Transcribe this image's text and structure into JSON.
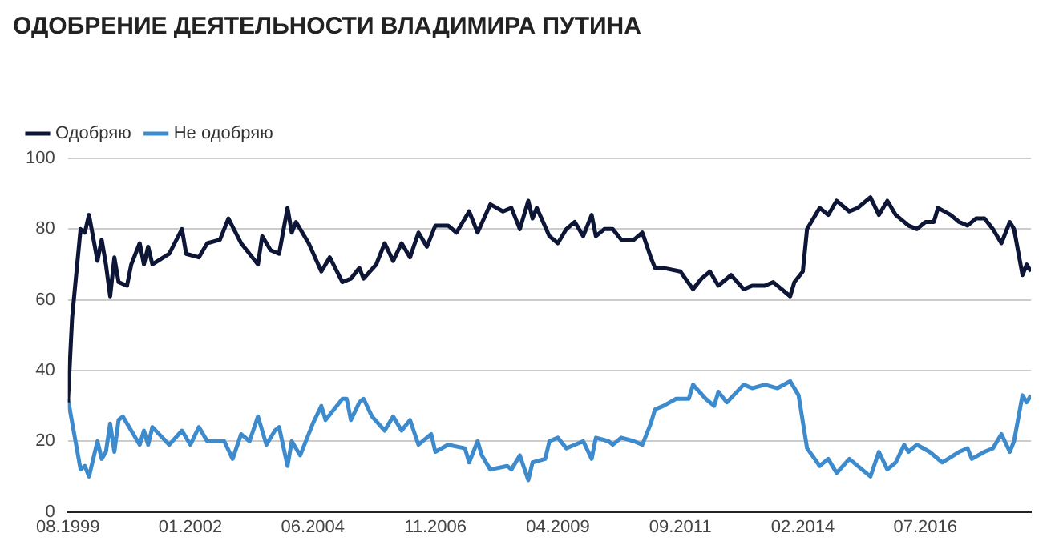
{
  "chart_data": {
    "type": "line",
    "title": "ОДОБРЕНИЕ ДЕЯТЕЛЬНОСТИ ВЛАДИМИРА ПУТИНА",
    "xlim": [
      "1999-08",
      "2018-08"
    ],
    "xticks": [
      {
        "value": "1999-08",
        "label": "08.1999"
      },
      {
        "value": "2002-01",
        "label": "01.2002"
      },
      {
        "value": "2004-06",
        "label": "06.2004"
      },
      {
        "value": "2006-11",
        "label": "11.2006"
      },
      {
        "value": "2009-04",
        "label": "04.2009"
      },
      {
        "value": "2011-09",
        "label": "09.2011"
      },
      {
        "value": "2014-02",
        "label": "02.2014"
      },
      {
        "value": "2016-07",
        "label": "07.2016"
      }
    ],
    "ylim": [
      0,
      100
    ],
    "yticks": [
      0,
      20,
      40,
      60,
      80,
      100
    ],
    "grid": "y",
    "legend": "top left",
    "marker": "none",
    "line_style": "solid",
    "series": [
      {
        "name": "Одобряю",
        "color": "#0d1637",
        "x": [
          "1999-08",
          "1999-09",
          "1999-11",
          "1999-12",
          "2000-01",
          "2000-03",
          "2000-04",
          "2000-05",
          "2000-06",
          "2000-07",
          "2000-08",
          "2000-10",
          "2000-11",
          "2001-01",
          "2001-02",
          "2001-03",
          "2001-04",
          "2001-08",
          "2001-11",
          "2001-12",
          "2002-03",
          "2002-05",
          "2002-08",
          "2002-10",
          "2003-01",
          "2003-05",
          "2003-06",
          "2003-08",
          "2003-10",
          "2003-12",
          "2004-01",
          "2004-02",
          "2004-05",
          "2004-08",
          "2004-10",
          "2005-01",
          "2005-03",
          "2005-05",
          "2005-06",
          "2005-09",
          "2005-11",
          "2006-01",
          "2006-03",
          "2006-05",
          "2006-07",
          "2006-09",
          "2006-11",
          "2007-02",
          "2007-04",
          "2007-07",
          "2007-09",
          "2007-12",
          "2008-03",
          "2008-05",
          "2008-07",
          "2008-09",
          "2008-10",
          "2008-11",
          "2009-02",
          "2009-04",
          "2009-06",
          "2009-08",
          "2009-10",
          "2009-12",
          "2010-01",
          "2010-03",
          "2010-05",
          "2010-07",
          "2010-10",
          "2010-12",
          "2011-02",
          "2011-03",
          "2011-05",
          "2011-09",
          "2011-12",
          "2012-02",
          "2012-04",
          "2012-06",
          "2012-09",
          "2012-12",
          "2013-02",
          "2013-05",
          "2013-07",
          "2013-09",
          "2013-11",
          "2013-12",
          "2014-02",
          "2014-03",
          "2014-06",
          "2014-08",
          "2014-10",
          "2015-01",
          "2015-03",
          "2015-06",
          "2015-08",
          "2015-10",
          "2015-12",
          "2016-03",
          "2016-05",
          "2016-07",
          "2016-09",
          "2016-10",
          "2017-01",
          "2017-03",
          "2017-05",
          "2017-07",
          "2017-09",
          "2017-11",
          "2018-01",
          "2018-03",
          "2018-04",
          "2018-06",
          "2018-07",
          "2018-08"
        ],
        "values": [
          31,
          55,
          80,
          79,
          84,
          71,
          77,
          70,
          61,
          72,
          65,
          64,
          70,
          76,
          70,
          75,
          70,
          73,
          80,
          73,
          72,
          76,
          77,
          83,
          76,
          70,
          78,
          74,
          73,
          86,
          79,
          82,
          76,
          68,
          72,
          65,
          66,
          69,
          66,
          70,
          76,
          71,
          76,
          72,
          79,
          75,
          81,
          81,
          79,
          85,
          79,
          87,
          85,
          86,
          80,
          88,
          83,
          86,
          78,
          76,
          80,
          82,
          78,
          84,
          78,
          80,
          80,
          77,
          77,
          79,
          72,
          69,
          69,
          68,
          63,
          66,
          68,
          64,
          67,
          63,
          64,
          64,
          65,
          63,
          61,
          65,
          68,
          80,
          86,
          84,
          88,
          85,
          86,
          89,
          84,
          88,
          84,
          81,
          80,
          82,
          82,
          86,
          84,
          82,
          81,
          83,
          83,
          80,
          76,
          82,
          80,
          67,
          70,
          68
        ]
      },
      {
        "name": "Не одобряю",
        "color": "#3d8bcd",
        "x": [
          "1999-08",
          "1999-11",
          "1999-12",
          "2000-01",
          "2000-03",
          "2000-04",
          "2000-05",
          "2000-06",
          "2000-07",
          "2000-08",
          "2000-09",
          "2000-11",
          "2001-01",
          "2001-02",
          "2001-03",
          "2001-04",
          "2001-08",
          "2001-11",
          "2002-01",
          "2002-03",
          "2002-05",
          "2002-09",
          "2002-11",
          "2003-01",
          "2003-03",
          "2003-05",
          "2003-07",
          "2003-09",
          "2003-10",
          "2003-12",
          "2004-01",
          "2004-03",
          "2004-06",
          "2004-08",
          "2004-09",
          "2004-11",
          "2005-01",
          "2005-02",
          "2005-03",
          "2005-05",
          "2005-06",
          "2005-08",
          "2005-11",
          "2006-01",
          "2006-03",
          "2006-05",
          "2006-07",
          "2006-10",
          "2006-11",
          "2007-02",
          "2007-06",
          "2007-07",
          "2007-09",
          "2007-10",
          "2007-12",
          "2008-04",
          "2008-05",
          "2008-07",
          "2008-09",
          "2008-10",
          "2009-01",
          "2009-02",
          "2009-04",
          "2009-06",
          "2009-08",
          "2009-10",
          "2009-12",
          "2010-01",
          "2010-04",
          "2010-05",
          "2010-07",
          "2010-10",
          "2010-12",
          "2011-02",
          "2011-03",
          "2011-05",
          "2011-08",
          "2011-11",
          "2011-12",
          "2012-03",
          "2012-05",
          "2012-06",
          "2012-08",
          "2012-12",
          "2013-02",
          "2013-05",
          "2013-08",
          "2013-11",
          "2014-01",
          "2014-03",
          "2014-06",
          "2014-08",
          "2014-10",
          "2015-01",
          "2015-03",
          "2015-06",
          "2015-08",
          "2015-10",
          "2015-12",
          "2016-02",
          "2016-03",
          "2016-05",
          "2016-08",
          "2016-11",
          "2017-03",
          "2017-05",
          "2017-06",
          "2017-09",
          "2017-11",
          "2018-01",
          "2018-03",
          "2018-04",
          "2018-06",
          "2018-07",
          "2018-08"
        ],
        "values": [
          32,
          12,
          13,
          10,
          20,
          15,
          17,
          25,
          17,
          26,
          27,
          23,
          19,
          23,
          19,
          24,
          19,
          23,
          19,
          24,
          20,
          20,
          15,
          22,
          20,
          27,
          19,
          23,
          24,
          13,
          20,
          16,
          25,
          30,
          26,
          29,
          32,
          32,
          26,
          31,
          32,
          27,
          23,
          27,
          23,
          26,
          19,
          22,
          17,
          19,
          18,
          14,
          20,
          16,
          12,
          13,
          12,
          16,
          9,
          14,
          15,
          20,
          21,
          18,
          19,
          20,
          15,
          21,
          20,
          19,
          21,
          20,
          19,
          25,
          29,
          30,
          32,
          32,
          36,
          32,
          30,
          34,
          31,
          36,
          35,
          36,
          35,
          37,
          33,
          18,
          13,
          15,
          11,
          15,
          13,
          10,
          17,
          12,
          14,
          19,
          17,
          19,
          17,
          14,
          17,
          18,
          15,
          17,
          18,
          22,
          17,
          20,
          33,
          31,
          33
        ]
      }
    ]
  }
}
